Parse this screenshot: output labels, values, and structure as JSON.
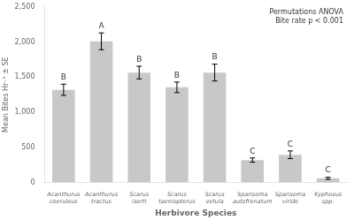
{
  "chart_data": {
    "type": "bar",
    "categories": [
      "Acanthurus\ncoeruleus",
      "Acanthurus\ntractus",
      "Scarus\niserti",
      "Scarus\ntaeniopterus",
      "Scarus\nvetula",
      "Sparisoma\nautofrenatum",
      "Sparisoma\nviride",
      "Kyphosus\nspp."
    ],
    "values": [
      1320,
      2010,
      1565,
      1355,
      1565,
      320,
      395,
      60
    ],
    "errors": [
      80,
      120,
      90,
      75,
      120,
      30,
      55,
      15
    ],
    "letters": [
      "B",
      "A",
      "B",
      "B",
      "B",
      "C",
      "C",
      "C"
    ],
    "color": "#c8c8c8",
    "ylabel": "Mean Bites Hr⁻¹ ± SE",
    "xlabel": "Herbivore Species",
    "ylim": [
      0,
      2500
    ],
    "yticks": [
      0,
      500,
      1000,
      1500,
      2000,
      2500
    ],
    "annotation": "Permutations ANOVA\nBite rate p < 0.001",
    "grid": false
  }
}
